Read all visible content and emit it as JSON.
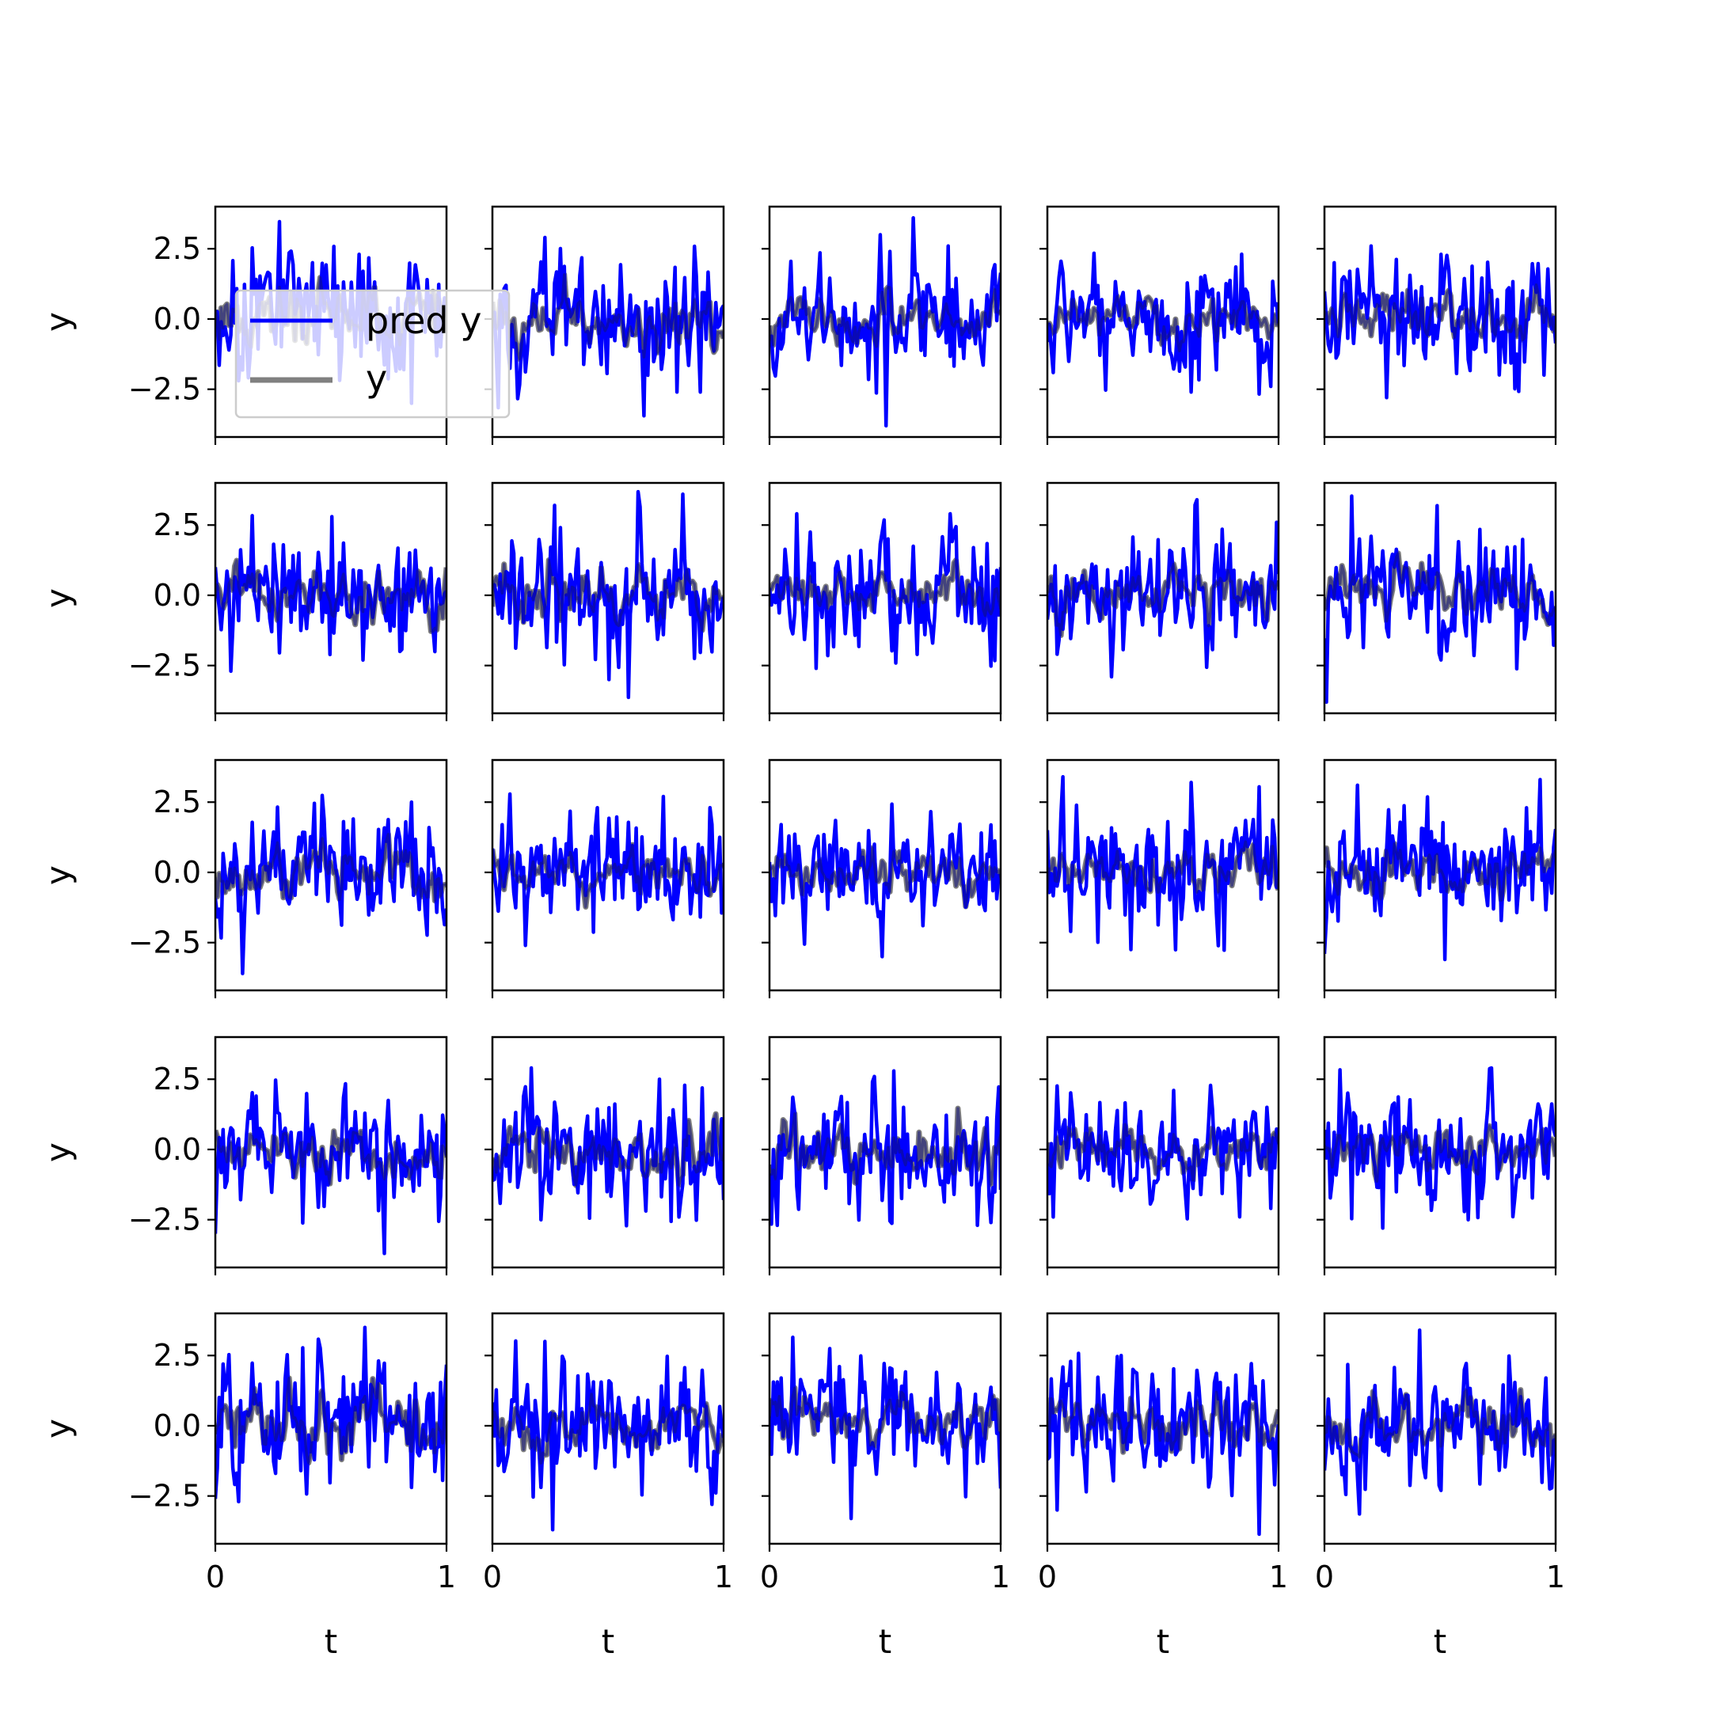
{
  "chart_data": {
    "type": "line",
    "grid": false,
    "layout": "5x5 grid of subplots, shared x and y axes",
    "xlabel": "t",
    "ylabel": "y",
    "xlim": [
      0,
      1
    ],
    "ylim": [
      -4.2,
      4.0
    ],
    "xticks": [
      0,
      1
    ],
    "xtick_labels": [
      "0",
      "1"
    ],
    "yticks": [
      2.5,
      0.0,
      -2.5
    ],
    "ytick_labels": [
      "2.5",
      "0.0",
      "−2.5"
    ],
    "legend": {
      "placement": "top-left of first subplot",
      "entries": [
        "pred y",
        "y"
      ]
    },
    "series_styles": [
      {
        "name": "pred y",
        "color": "#0000ff"
      },
      {
        "name": "y",
        "color": "#808080"
      }
    ],
    "points_per_series": 120,
    "subplots": [
      {
        "row": 0,
        "col": 0,
        "pred_amp": 1.1,
        "y_amp": 0.45,
        "extremes": [
          [
            0.62,
            2.3
          ],
          [
            0.85,
            -3.0
          ],
          [
            0.1,
            -2.2
          ]
        ]
      },
      {
        "row": 0,
        "col": 1,
        "pred_amp": 1.0,
        "y_amp": 0.4,
        "extremes": [
          [
            0.23,
            2.9
          ],
          [
            0.8,
            -2.6
          ],
          [
            0.9,
            -2.6
          ]
        ]
      },
      {
        "row": 0,
        "col": 2,
        "pred_amp": 0.9,
        "y_amp": 0.35,
        "extremes": [
          [
            0.62,
            3.6
          ],
          [
            0.5,
            -3.8
          ],
          [
            0.48,
            3.0
          ]
        ]
      },
      {
        "row": 0,
        "col": 3,
        "pred_amp": 0.85,
        "y_amp": 0.3,
        "extremes": [
          [
            0.62,
            2.1
          ],
          [
            0.62,
            -2.6
          ],
          [
            0.97,
            -2.4
          ]
        ]
      },
      {
        "row": 0,
        "col": 4,
        "pred_amp": 0.95,
        "y_amp": 0.35,
        "extremes": [
          [
            0.2,
            2.6
          ],
          [
            0.27,
            -2.8
          ],
          [
            0.5,
            2.3
          ]
        ]
      },
      {
        "row": 1,
        "col": 0,
        "pred_amp": 0.95,
        "y_amp": 0.4,
        "extremes": [
          [
            0.5,
            2.8
          ],
          [
            0.07,
            -2.7
          ],
          [
            0.8,
            -2.0
          ]
        ]
      },
      {
        "row": 1,
        "col": 1,
        "pred_amp": 1.05,
        "y_amp": 0.4,
        "extremes": [
          [
            0.82,
            3.6
          ],
          [
            0.5,
            -3.0
          ],
          [
            0.27,
            3.2
          ]
        ]
      },
      {
        "row": 1,
        "col": 2,
        "pred_amp": 0.9,
        "y_amp": 0.35,
        "extremes": [
          [
            0.12,
            2.9
          ],
          [
            0.2,
            -2.6
          ],
          [
            0.78,
            2.9
          ]
        ]
      },
      {
        "row": 1,
        "col": 3,
        "pred_amp": 0.9,
        "y_amp": 0.35,
        "extremes": [
          [
            0.65,
            3.4
          ],
          [
            0.28,
            -2.9
          ],
          [
            0.99,
            2.6
          ]
        ]
      },
      {
        "row": 1,
        "col": 4,
        "pred_amp": 0.95,
        "y_amp": 0.35,
        "extremes": [
          [
            0.01,
            -3.8
          ],
          [
            0.2,
            2.1
          ],
          [
            0.5,
            -2.3
          ]
        ]
      },
      {
        "row": 2,
        "col": 0,
        "pred_amp": 0.9,
        "y_amp": 0.4,
        "extremes": [
          [
            0.12,
            -3.6
          ],
          [
            0.85,
            2.5
          ],
          [
            0.6,
            1.9
          ]
        ]
      },
      {
        "row": 2,
        "col": 1,
        "pred_amp": 1.0,
        "y_amp": 0.3,
        "extremes": [
          [
            0.45,
            2.3
          ],
          [
            0.14,
            -2.6
          ],
          [
            0.94,
            2.3
          ]
        ]
      },
      {
        "row": 2,
        "col": 2,
        "pred_amp": 0.9,
        "y_amp": 0.35,
        "extremes": [
          [
            0.49,
            -3.0
          ],
          [
            0.05,
            1.7
          ],
          [
            0.92,
            1.4
          ]
        ]
      },
      {
        "row": 2,
        "col": 3,
        "pred_amp": 1.05,
        "y_amp": 0.35,
        "extremes": [
          [
            0.07,
            3.4
          ],
          [
            0.62,
            3.2
          ],
          [
            0.1,
            -2.1
          ]
        ]
      },
      {
        "row": 2,
        "col": 4,
        "pred_amp": 1.0,
        "y_amp": 0.35,
        "extremes": [
          [
            0.14,
            3.1
          ],
          [
            0.52,
            -3.1
          ],
          [
            0.0,
            -2.9
          ]
        ]
      },
      {
        "row": 3,
        "col": 0,
        "pred_amp": 0.9,
        "y_amp": 0.4,
        "extremes": [
          [
            0.73,
            -3.7
          ],
          [
            0.0,
            -3.0
          ],
          [
            0.18,
            1.9
          ]
        ]
      },
      {
        "row": 3,
        "col": 1,
        "pred_amp": 1.05,
        "y_amp": 0.4,
        "extremes": [
          [
            0.17,
            2.9
          ],
          [
            0.21,
            -2.5
          ],
          [
            0.72,
            2.5
          ]
        ]
      },
      {
        "row": 3,
        "col": 2,
        "pred_amp": 0.95,
        "y_amp": 0.45,
        "extremes": [
          [
            0.03,
            -2.7
          ],
          [
            0.45,
            2.6
          ],
          [
            0.9,
            -2.7
          ]
        ]
      },
      {
        "row": 3,
        "col": 3,
        "pred_amp": 0.95,
        "y_amp": 0.35,
        "extremes": [
          [
            0.55,
            2.1
          ],
          [
            0.83,
            -2.4
          ],
          [
            0.95,
            1.5
          ]
        ]
      },
      {
        "row": 3,
        "col": 4,
        "pred_amp": 0.95,
        "y_amp": 0.35,
        "extremes": [
          [
            0.72,
            2.9
          ],
          [
            0.25,
            -2.8
          ],
          [
            0.62,
            -2.5
          ]
        ]
      },
      {
        "row": 4,
        "col": 0,
        "pred_amp": 1.0,
        "y_amp": 0.45,
        "extremes": [
          [
            0.65,
            3.5
          ],
          [
            0.1,
            -2.7
          ],
          [
            0.0,
            -2.6
          ]
        ]
      },
      {
        "row": 4,
        "col": 1,
        "pred_amp": 1.05,
        "y_amp": 0.35,
        "extremes": [
          [
            0.26,
            -3.7
          ],
          [
            0.23,
            3.0
          ],
          [
            0.95,
            -2.8
          ]
        ]
      },
      {
        "row": 4,
        "col": 2,
        "pred_amp": 0.9,
        "y_amp": 0.4,
        "extremes": [
          [
            0.35,
            -3.3
          ],
          [
            0.72,
            1.9
          ],
          [
            0.05,
            1.7
          ]
        ]
      },
      {
        "row": 4,
        "col": 3,
        "pred_amp": 0.9,
        "y_amp": 0.35,
        "extremes": [
          [
            0.04,
            -3.0
          ],
          [
            0.32,
            2.5
          ],
          [
            0.98,
            -2.1
          ]
        ]
      },
      {
        "row": 4,
        "col": 4,
        "pred_amp": 0.95,
        "y_amp": 0.4,
        "extremes": [
          [
            0.41,
            3.4
          ],
          [
            0.5,
            -2.3
          ],
          [
            0.96,
            1.7
          ]
        ]
      }
    ]
  }
}
